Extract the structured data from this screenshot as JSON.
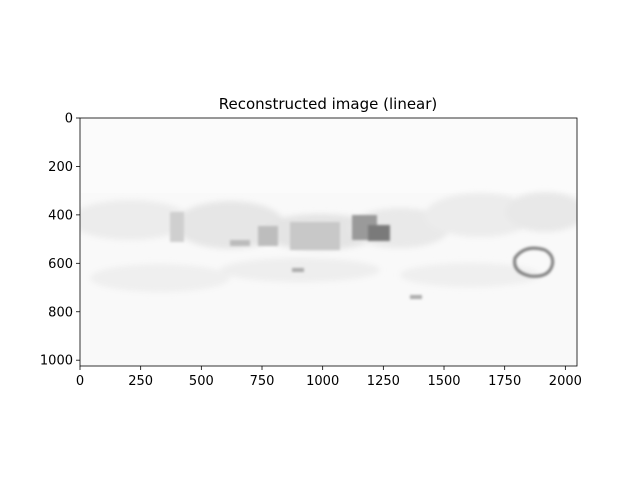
{
  "chart_data": {
    "type": "heatmap",
    "title": "Reconstructed image (linear)",
    "colormap": "gray_r",
    "image_extent": {
      "x": [
        0,
        2048
      ],
      "y": [
        0,
        1024
      ]
    },
    "xlim": [
      0,
      2048
    ],
    "ylim": [
      1024,
      0
    ],
    "y_inverted": true,
    "grid": false,
    "x_ticks": [
      {
        "value": 0,
        "label": "0"
      },
      {
        "value": 250,
        "label": "250"
      },
      {
        "value": 500,
        "label": "500"
      },
      {
        "value": 750,
        "label": "750"
      },
      {
        "value": 1000,
        "label": "1000"
      },
      {
        "value": 1250,
        "label": "1250"
      },
      {
        "value": 1500,
        "label": "1500"
      },
      {
        "value": 1750,
        "label": "1750"
      },
      {
        "value": 2000,
        "label": "2000"
      }
    ],
    "y_ticks": [
      {
        "value": 0,
        "label": "0"
      },
      {
        "value": 200,
        "label": "200"
      },
      {
        "value": 400,
        "label": "400"
      },
      {
        "value": 600,
        "label": "600"
      },
      {
        "value": 800,
        "label": "800"
      },
      {
        "value": 1000,
        "label": "1000"
      }
    ]
  },
  "colors": {
    "axis": "#000000",
    "background": "#ffffff",
    "image_base": "#f7f7f7"
  }
}
